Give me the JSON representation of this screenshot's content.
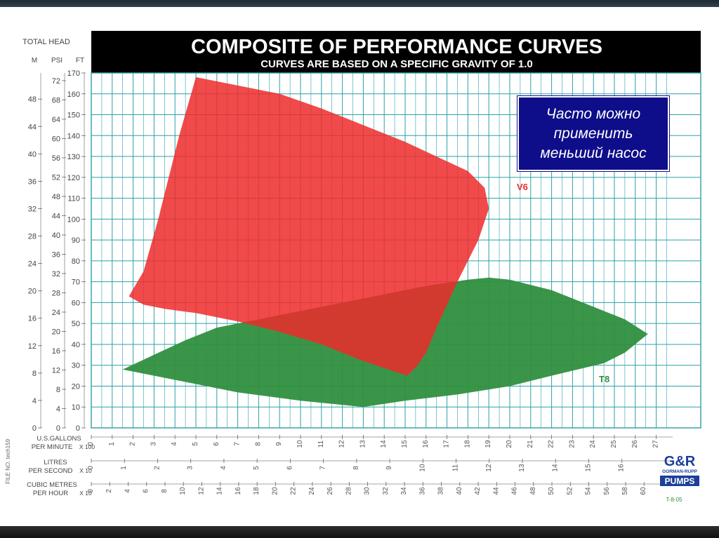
{
  "callout": {
    "lines": [
      "Часто можно",
      "применить",
      "меньший насос"
    ]
  },
  "colors": {
    "grid": "#2aa0a6",
    "v6": "#ef2a2a",
    "t8": "#2f8f3f",
    "header_bg": "#000000",
    "callout_bg": "#0e0e8a"
  },
  "chart_data": {
    "type": "area",
    "title": "COMPOSITE OF PERFORMANCE CURVES",
    "subtitle": "CURVES ARE BASED ON A SPECIFIC GRAVITY OF 1.0",
    "head_label": "TOTAL HEAD",
    "y_axes": {
      "m": {
        "label": "M",
        "ticks": [
          0,
          4,
          8,
          12,
          16,
          20,
          24,
          28,
          32,
          36,
          40,
          44,
          48
        ]
      },
      "psi": {
        "label": "PSI",
        "ticks": [
          0,
          4,
          8,
          12,
          16,
          20,
          24,
          28,
          32,
          36,
          40,
          44,
          48,
          52,
          56,
          60,
          64,
          68,
          72
        ]
      },
      "ft": {
        "label": "FT",
        "ticks": [
          0,
          10,
          20,
          30,
          40,
          50,
          60,
          70,
          80,
          90,
          100,
          110,
          120,
          130,
          140,
          150,
          160,
          170
        ]
      }
    },
    "ylim": [
      0,
      170
    ],
    "xlim": [
      0,
      27
    ],
    "x_axes": {
      "gpm": {
        "label_line1": "U.S.GALLONS",
        "label_line2": "PER MINUTE",
        "multiplier": "X 100",
        "ticks": [
          "0",
          "1",
          "2",
          "3",
          "4",
          "5",
          "6",
          "7",
          "8",
          "9",
          "10",
          "11",
          "12",
          "13",
          "14",
          "15",
          "16",
          "17",
          "18",
          "19",
          "20",
          "21",
          "22",
          "23",
          "24",
          "25",
          "26",
          "27"
        ]
      },
      "lps": {
        "label_line1": "LITRES",
        "label_line2": "PER SECOND",
        "multiplier": "X 10",
        "ticks": [
          "0",
          "1",
          "2",
          "3",
          "4",
          "5",
          "6",
          "7",
          "8",
          "9",
          "10",
          "11",
          "12",
          "13",
          "14",
          "15",
          "16"
        ]
      },
      "cmh": {
        "label_line1": "CUBIC METRES",
        "label_line2": "PER HOUR",
        "multiplier": "X 10",
        "ticks": [
          "0",
          "2",
          "4",
          "6",
          "8",
          "10",
          "12",
          "14",
          "16",
          "18",
          "20",
          "22",
          "24",
          "26",
          "28",
          "30",
          "32",
          "34",
          "36",
          "38",
          "40",
          "42",
          "44",
          "46",
          "48",
          "50",
          "52",
          "54",
          "56",
          "58",
          "60"
        ]
      }
    },
    "series": [
      {
        "name": "T8",
        "color": "#2f8f3f",
        "polygon": [
          [
            1.5,
            28
          ],
          [
            3,
            35
          ],
          [
            4.5,
            42
          ],
          [
            5.5,
            46
          ],
          [
            6,
            48
          ],
          [
            8,
            52
          ],
          [
            10,
            56
          ],
          [
            12,
            60
          ],
          [
            14,
            64
          ],
          [
            16,
            68
          ],
          [
            18,
            71
          ],
          [
            19,
            72
          ],
          [
            20,
            71
          ],
          [
            22,
            66
          ],
          [
            24,
            58
          ],
          [
            25.5,
            52
          ],
          [
            26.6,
            45
          ],
          [
            25.5,
            36
          ],
          [
            24.5,
            31
          ],
          [
            22,
            25
          ],
          [
            20,
            20
          ],
          [
            17.5,
            16
          ],
          [
            15,
            13
          ],
          [
            13,
            10
          ],
          [
            10,
            13
          ],
          [
            7,
            17
          ],
          [
            5,
            21
          ],
          [
            3,
            25
          ],
          [
            1.5,
            28
          ]
        ]
      },
      {
        "name": "V6",
        "color": "#ef2a2a",
        "polygon": [
          [
            1.8,
            63
          ],
          [
            2.5,
            75
          ],
          [
            3.2,
            100
          ],
          [
            4.2,
            140
          ],
          [
            5,
            168
          ],
          [
            7,
            164
          ],
          [
            9,
            160
          ],
          [
            11,
            153
          ],
          [
            13,
            145
          ],
          [
            15,
            137
          ],
          [
            16.5,
            130
          ],
          [
            18,
            123
          ],
          [
            18.8,
            115
          ],
          [
            19,
            105
          ],
          [
            18.5,
            90
          ],
          [
            17.5,
            70
          ],
          [
            16.5,
            48
          ],
          [
            16,
            36
          ],
          [
            15.6,
            30
          ],
          [
            15.1,
            25
          ],
          [
            13,
            32
          ],
          [
            11,
            40
          ],
          [
            9,
            46
          ],
          [
            7,
            51
          ],
          [
            5,
            55
          ],
          [
            3.5,
            57
          ],
          [
            2.5,
            59
          ],
          [
            1.8,
            63
          ]
        ]
      }
    ],
    "logo": {
      "line1": "G&R",
      "line2": "GORMAN-RUPP",
      "line3": "PUMPS"
    },
    "code": "T-8-05",
    "file_no": "FILE NO. tech159"
  }
}
